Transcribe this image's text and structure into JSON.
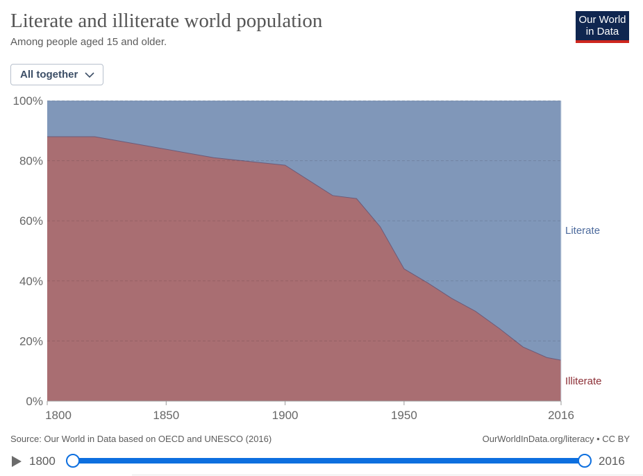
{
  "header": {
    "title": "Literate and illiterate world population",
    "subtitle": "Among people aged 15 and older.",
    "logo_text": "Our World in Data"
  },
  "controls": {
    "stack_mode": "All together"
  },
  "chart_data": {
    "type": "area",
    "stacked": true,
    "relative": true,
    "x": [
      1800,
      1820,
      1870,
      1900,
      1920,
      1930,
      1940,
      1950,
      1960,
      1970,
      1980,
      1990,
      2000,
      2010,
      2016
    ],
    "series": [
      {
        "name": "Illiterate",
        "color": "#a96e72",
        "values": [
          88,
          88,
          81,
          78.5,
          68.4,
          67.4,
          58,
          44,
          39.3,
          34.2,
          29.9,
          24.2,
          18,
          14.5,
          13.6
        ]
      },
      {
        "name": "Literate",
        "color": "#8097b9",
        "values": [
          12,
          12,
          19,
          21.5,
          31.6,
          32.6,
          42,
          56,
          60.7,
          65.8,
          70.1,
          75.8,
          82,
          85.5,
          86.4
        ]
      }
    ],
    "xlim": [
      1800,
      2016
    ],
    "ylim": [
      0,
      100
    ],
    "x_ticks": [
      "1800",
      "1850",
      "1900",
      "1950",
      "2016"
    ],
    "x_tick_values": [
      1800,
      1850,
      1900,
      1950,
      2016
    ],
    "y_ticks": [
      "0%",
      "20%",
      "40%",
      "60%",
      "80%",
      "100%"
    ],
    "y_tick_values": [
      0,
      20,
      40,
      60,
      80,
      100
    ],
    "grid": "horizontal dashed",
    "legend": "right, inline labels"
  },
  "footer": {
    "source": "Source: Our World in Data based on OECD and UNESCO (2016)",
    "license": "OurWorldInData.org/literacy • CC BY"
  },
  "timeline": {
    "start": "1800",
    "end": "2016",
    "start_value": 1800,
    "end_value": 2016,
    "accent": "#0d6fdf"
  }
}
